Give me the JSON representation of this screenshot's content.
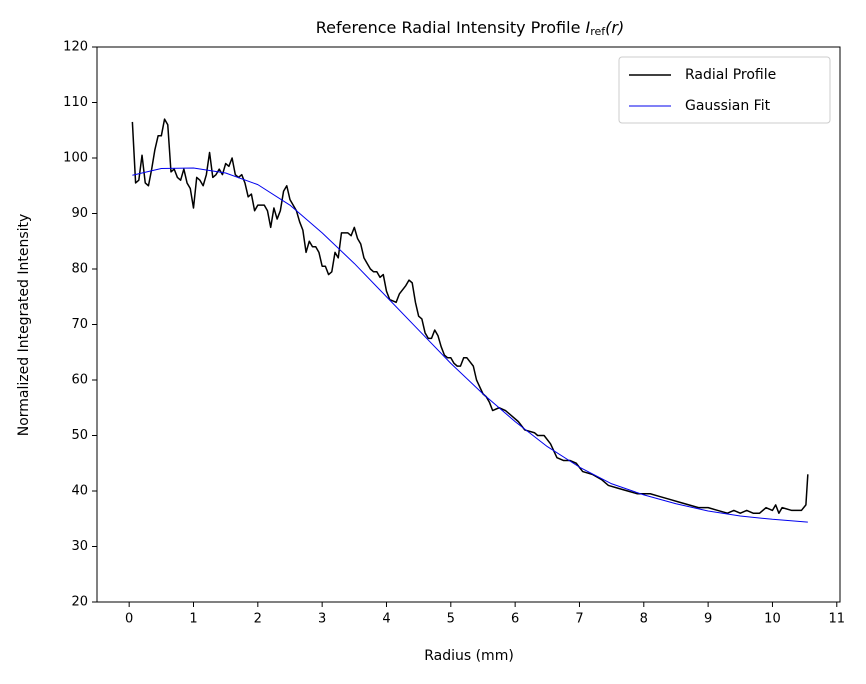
{
  "chart_data": {
    "type": "line",
    "title": "Reference Radial Intensity Profile",
    "title_symbol": {
      "base": "I",
      "sub": "ref",
      "arg": "(r)"
    },
    "xlabel": "Radius (mm)",
    "ylabel": "Normalized Integrated Intensity",
    "xlim": [
      -0.5,
      11.05
    ],
    "ylim": [
      20,
      120
    ],
    "xticks": [
      0,
      1,
      2,
      3,
      4,
      5,
      6,
      7,
      8,
      9,
      10,
      11
    ],
    "yticks": [
      20,
      30,
      40,
      50,
      60,
      70,
      80,
      90,
      100,
      110,
      120
    ],
    "legend": "upper right",
    "series": [
      {
        "name": "Radial Profile",
        "color": "#000000",
        "width": 1.5,
        "x": [
          0.05,
          0.1,
          0.15,
          0.2,
          0.25,
          0.3,
          0.35,
          0.4,
          0.45,
          0.5,
          0.55,
          0.6,
          0.65,
          0.7,
          0.75,
          0.8,
          0.85,
          0.9,
          0.95,
          1.0,
          1.05,
          1.1,
          1.15,
          1.2,
          1.25,
          1.3,
          1.35,
          1.4,
          1.45,
          1.5,
          1.55,
          1.6,
          1.65,
          1.7,
          1.75,
          1.8,
          1.85,
          1.9,
          1.95,
          2.0,
          2.1,
          2.15,
          2.2,
          2.25,
          2.3,
          2.35,
          2.4,
          2.45,
          2.5,
          2.6,
          2.65,
          2.7,
          2.75,
          2.8,
          2.85,
          2.9,
          2.95,
          3.0,
          3.05,
          3.1,
          3.15,
          3.2,
          3.25,
          3.3,
          3.4,
          3.45,
          3.5,
          3.55,
          3.6,
          3.65,
          3.7,
          3.75,
          3.8,
          3.85,
          3.9,
          3.95,
          4.0,
          4.05,
          4.15,
          4.2,
          4.3,
          4.35,
          4.4,
          4.45,
          4.5,
          4.55,
          4.6,
          4.65,
          4.7,
          4.75,
          4.8,
          4.85,
          4.9,
          4.95,
          5.0,
          5.05,
          5.1,
          5.15,
          5.2,
          5.25,
          5.35,
          5.4,
          5.5,
          5.55,
          5.6,
          5.65,
          5.75,
          5.85,
          5.95,
          6.05,
          6.15,
          6.3,
          6.35,
          6.45,
          6.55,
          6.65,
          6.75,
          6.85,
          6.95,
          7.05,
          7.2,
          7.35,
          7.45,
          7.6,
          7.75,
          7.9,
          8.1,
          8.25,
          8.4,
          8.55,
          8.7,
          8.85,
          9.0,
          9.15,
          9.3,
          9.4,
          9.5,
          9.6,
          9.7,
          9.8,
          9.9,
          10.0,
          10.05,
          10.1,
          10.15,
          10.3,
          10.45,
          10.52,
          10.55
        ],
        "values": [
          106.5,
          95.5,
          96,
          100.5,
          95.5,
          95,
          98,
          101.5,
          104,
          104,
          107,
          106,
          97.5,
          98,
          96.5,
          96,
          98,
          95.5,
          94.5,
          91,
          96.5,
          96,
          95,
          97,
          101,
          96.5,
          97,
          98,
          97,
          99,
          98.5,
          100,
          97,
          96.5,
          97,
          95.5,
          93,
          93.5,
          90.5,
          91.5,
          91.5,
          90.5,
          87.5,
          91,
          89,
          90.5,
          94,
          95,
          92.5,
          90.5,
          88.5,
          87,
          83,
          85,
          84,
          84,
          83,
          80.5,
          80.5,
          79,
          79.5,
          83,
          82,
          86.5,
          86.5,
          86,
          87.5,
          85.5,
          84.5,
          82,
          81,
          80,
          79.5,
          79.5,
          78.5,
          79,
          76,
          74.5,
          74,
          75.5,
          77,
          78,
          77.5,
          74,
          71.5,
          71,
          68.5,
          67.5,
          67.5,
          69,
          68,
          66,
          64.5,
          64,
          64,
          63,
          62.5,
          62.5,
          64,
          64,
          62.5,
          60,
          57.5,
          57,
          56,
          54.5,
          55,
          54.5,
          53.5,
          52.5,
          51,
          50.5,
          50,
          50,
          48.5,
          46,
          45.5,
          45.5,
          45,
          43.5,
          43,
          42,
          41,
          40.5,
          40,
          39.5,
          39.5,
          39,
          38.5,
          38,
          37.5,
          37,
          37,
          36.5,
          36,
          36.5,
          36,
          36.5,
          36,
          36,
          37,
          36.5,
          37.5,
          36,
          37,
          36.5,
          36.5,
          37.5,
          43
        ]
      },
      {
        "name": "Gaussian Fit",
        "color": "#0000ee",
        "width": 1,
        "x": [
          0.05,
          0.5,
          1,
          1.5,
          2,
          2.5,
          3,
          3.5,
          4,
          4.5,
          5,
          5.5,
          6,
          6.5,
          7,
          7.5,
          8,
          8.5,
          9,
          9.5,
          10,
          10.55
        ],
        "values": [
          96.9,
          98.1,
          98.2,
          97.3,
          95.2,
          91.5,
          86.5,
          81,
          75,
          69,
          63,
          57.5,
          52.5,
          48,
          44.3,
          41.3,
          39.3,
          37.7,
          36.4,
          35.5,
          34.9,
          34.4
        ]
      }
    ]
  }
}
